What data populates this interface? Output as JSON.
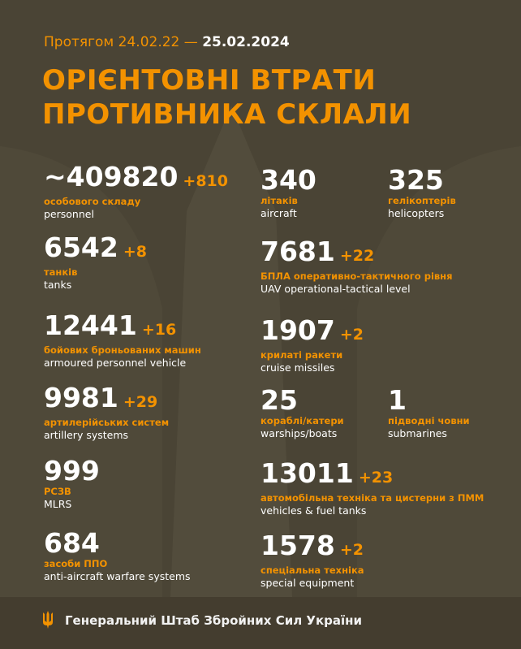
{
  "header": {
    "period_prefix": "Протягом 24.02.22 —",
    "period_end": "25.02.2024",
    "title_line1": "ОРІЄНТОВНІ ВТРАТИ",
    "title_line2": "ПРОТИВНИКА СКЛАЛИ"
  },
  "left": [
    {
      "value": "~409820",
      "delta": "+810",
      "ua": "особового складу",
      "en": "personnel"
    },
    {
      "value": "6542",
      "delta": "+8",
      "ua": "танків",
      "en": "tanks"
    },
    {
      "value": "12441",
      "delta": "+16",
      "ua": "бойових броньованих машин",
      "en": "armoured personnel vehicle"
    },
    {
      "value": "9981",
      "delta": "+29",
      "ua": "артилерійських систем",
      "en": "artillery systems"
    },
    {
      "value": "999",
      "delta": "",
      "ua": "РСЗВ",
      "en": "MLRS"
    },
    {
      "value": "684",
      "delta": "",
      "ua": "засоби ППО",
      "en": "anti-aircraft warfare systems"
    }
  ],
  "right": [
    {
      "value": "340",
      "delta": "",
      "ua": "літаків",
      "en": "aircraft"
    },
    {
      "value": "325",
      "delta": "",
      "ua": "гелікоптерів",
      "en": "helicopters"
    },
    {
      "value": "7681",
      "delta": "+22",
      "ua": "БПЛА оперативно-тактичного рівня",
      "en": "UAV operational-tactical level"
    },
    {
      "value": "1907",
      "delta": "+2",
      "ua": "крилаті ракети",
      "en": "cruise missiles"
    },
    {
      "value": "25",
      "delta": "",
      "ua": "кораблі/катери",
      "en": "warships/boats"
    },
    {
      "value": "1",
      "delta": "",
      "ua": "підводні човни",
      "en": "submarines"
    },
    {
      "value": "13011",
      "delta": "+23",
      "ua": "автомобільна техніка та цистерни з ПММ",
      "en": "vehicles & fuel tanks"
    },
    {
      "value": "1578",
      "delta": "+2",
      "ua": "спеціальна техніка",
      "en": "special equipment"
    }
  ],
  "footer": {
    "text": "Генеральний Штаб Збройних Сил України",
    "icon": "trident-icon"
  },
  "colors": {
    "accent": "#f39200",
    "background": "#4a4435"
  }
}
